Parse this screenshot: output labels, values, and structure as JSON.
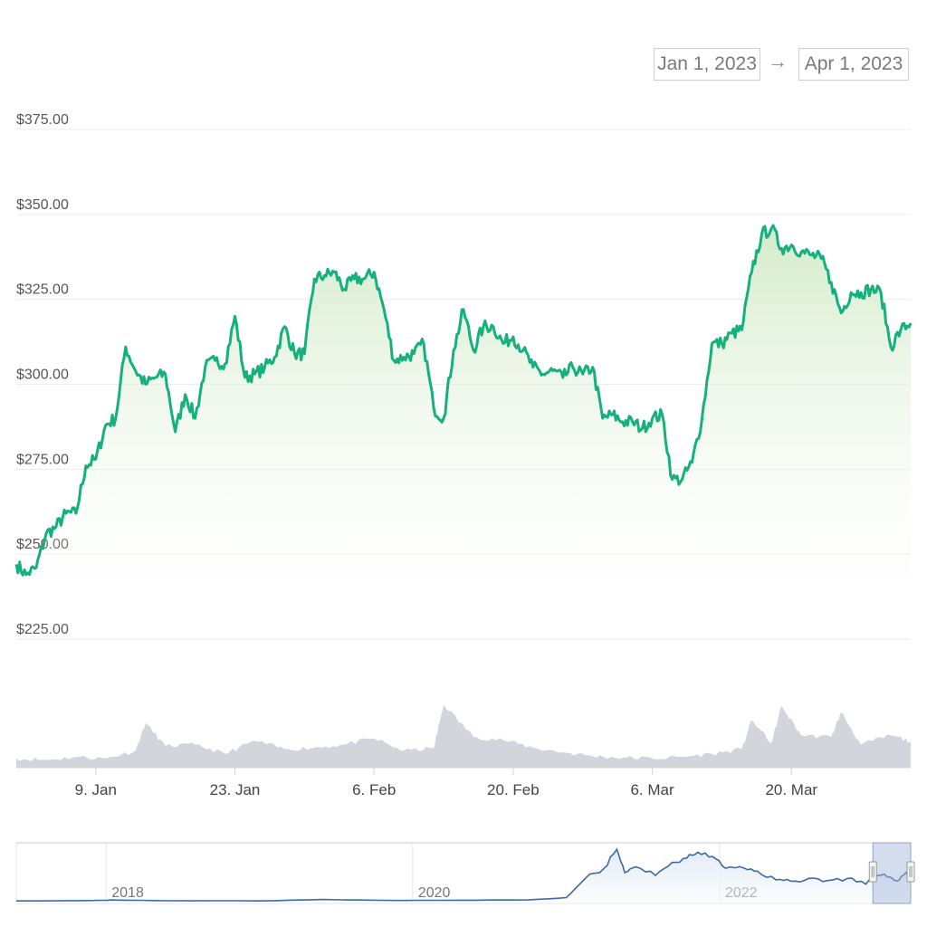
{
  "range_selector": {
    "from": "Jan 1, 2023",
    "arrow": "→",
    "to": "Apr 1, 2023"
  },
  "colors": {
    "price_line": "#16b07c",
    "area_top": "#cfe9c4",
    "volume": "#d3d5dc",
    "navigator_line": "#3d6aa3",
    "navigator_handle": "#9fb3d9",
    "gridline": "#ececec"
  },
  "chart_data": [
    {
      "type": "line",
      "title": "",
      "xlabel": "",
      "ylabel": "",
      "ylim": [
        225,
        375
      ],
      "y_ticks": [
        375,
        350,
        325,
        300,
        275,
        250,
        225
      ],
      "y_tick_labels": [
        "$375.00",
        "$350.00",
        "$325.00",
        "$300.00",
        "$275.00",
        "$250.00",
        "$225.00"
      ],
      "x_range": [
        "2023-01-01",
        "2023-04-01"
      ],
      "x_ticks": [
        "2023-01-09",
        "2023-01-23",
        "2023-02-06",
        "2023-02-20",
        "2023-03-06",
        "2023-03-20"
      ],
      "x_tick_labels": [
        "9. Jan",
        "23. Jan",
        "6. Feb",
        "20. Feb",
        "6. Mar",
        "20. Mar"
      ],
      "grid": true,
      "legend": "none",
      "series": [
        {
          "x": [
            "2023-01-01",
            "2023-01-02",
            "2023-01-03",
            "2023-01-04",
            "2023-01-05",
            "2023-01-06",
            "2023-01-07",
            "2023-01-08",
            "2023-01-09",
            "2023-01-10",
            "2023-01-11",
            "2023-01-12",
            "2023-01-13",
            "2023-01-14",
            "2023-01-15",
            "2023-01-16",
            "2023-01-17",
            "2023-01-18",
            "2023-01-19",
            "2023-01-20",
            "2023-01-21",
            "2023-01-22",
            "2023-01-23",
            "2023-01-24",
            "2023-01-25",
            "2023-01-26",
            "2023-01-27",
            "2023-01-28",
            "2023-01-29",
            "2023-01-30",
            "2023-01-31",
            "2023-02-01",
            "2023-02-02",
            "2023-02-03",
            "2023-02-04",
            "2023-02-05",
            "2023-02-06",
            "2023-02-07",
            "2023-02-08",
            "2023-02-09",
            "2023-02-10",
            "2023-02-11",
            "2023-02-12",
            "2023-02-13",
            "2023-02-14",
            "2023-02-15",
            "2023-02-16",
            "2023-02-17",
            "2023-02-18",
            "2023-02-19",
            "2023-02-20",
            "2023-02-21",
            "2023-02-22",
            "2023-02-23",
            "2023-02-24",
            "2023-02-25",
            "2023-02-26",
            "2023-02-27",
            "2023-02-28",
            "2023-03-01",
            "2023-03-02",
            "2023-03-03",
            "2023-03-04",
            "2023-03-05",
            "2023-03-06",
            "2023-03-07",
            "2023-03-08",
            "2023-03-09",
            "2023-03-10",
            "2023-03-11",
            "2023-03-12",
            "2023-03-13",
            "2023-03-14",
            "2023-03-15",
            "2023-03-16",
            "2023-03-17",
            "2023-03-18",
            "2023-03-19",
            "2023-03-20",
            "2023-03-21",
            "2023-03-22",
            "2023-03-23",
            "2023-03-24",
            "2023-03-25",
            "2023-03-26",
            "2023-03-27",
            "2023-03-28",
            "2023-03-29",
            "2023-03-30",
            "2023-03-31",
            "2023-04-01"
          ],
          "y": [
            247,
            244,
            246,
            256,
            258,
            262,
            262,
            276,
            278,
            288,
            290,
            311,
            304,
            300,
            302,
            303,
            286,
            297,
            290,
            305,
            307,
            306,
            320,
            302,
            303,
            305,
            308,
            317,
            309,
            309,
            331,
            332,
            333,
            328,
            331,
            331,
            333,
            322,
            307,
            308,
            309,
            312,
            293,
            290,
            310,
            322,
            310,
            317,
            317,
            312,
            314,
            310,
            305,
            303,
            304,
            302,
            305,
            303,
            305,
            290,
            291,
            289,
            289,
            287,
            290,
            291,
            272,
            272,
            277,
            290,
            312,
            312,
            315,
            316,
            333,
            344,
            346,
            340,
            341,
            339,
            338,
            337,
            330,
            321,
            327,
            327,
            328,
            327,
            311,
            316,
            318
          ]
        }
      ]
    },
    {
      "type": "area",
      "title": "",
      "xlabel": "",
      "ylabel": "",
      "x_range": [
        "2023-01-01",
        "2023-04-01"
      ],
      "series": [
        {
          "x": [
            "2023-01-01",
            "2023-01-04",
            "2023-01-07",
            "2023-01-10",
            "2023-01-13",
            "2023-01-14",
            "2023-01-16",
            "2023-01-19",
            "2023-01-22",
            "2023-01-25",
            "2023-01-28",
            "2023-01-31",
            "2023-02-03",
            "2023-02-06",
            "2023-02-09",
            "2023-02-12",
            "2023-02-13",
            "2023-02-16",
            "2023-02-19",
            "2023-02-22",
            "2023-02-25",
            "2023-02-28",
            "2023-03-03",
            "2023-03-06",
            "2023-03-09",
            "2023-03-12",
            "2023-03-15",
            "2023-03-16",
            "2023-03-18",
            "2023-03-19",
            "2023-03-21",
            "2023-03-24",
            "2023-03-25",
            "2023-03-27",
            "2023-03-30",
            "2023-04-01"
          ],
          "y": [
            0.12,
            0.1,
            0.14,
            0.12,
            0.22,
            0.58,
            0.28,
            0.3,
            0.18,
            0.35,
            0.24,
            0.26,
            0.3,
            0.38,
            0.22,
            0.25,
            0.82,
            0.4,
            0.36,
            0.26,
            0.2,
            0.15,
            0.13,
            0.12,
            0.14,
            0.18,
            0.24,
            0.62,
            0.32,
            0.8,
            0.42,
            0.4,
            0.72,
            0.3,
            0.42,
            0.34
          ]
        }
      ]
    },
    {
      "type": "line",
      "title": "",
      "xlabel": "",
      "ylabel": "",
      "x_range": [
        "2017-06-01",
        "2023-04-01"
      ],
      "x_tick_labels": [
        "2018",
        "2020",
        "2022"
      ],
      "x_ticks": [
        "2018-01-01",
        "2020-01-01",
        "2022-01-01"
      ],
      "selected_range": [
        "2023-01-01",
        "2023-04-01"
      ],
      "series": [
        {
          "x": [
            "2017-06-01",
            "2017-12-01",
            "2018-01-15",
            "2018-06-01",
            "2019-01-01",
            "2019-06-01",
            "2019-12-01",
            "2020-06-01",
            "2020-10-01",
            "2021-01-01",
            "2021-02-15",
            "2021-04-01",
            "2021-05-01",
            "2021-05-20",
            "2021-06-15",
            "2021-08-01",
            "2021-09-10",
            "2021-10-15",
            "2021-11-10",
            "2021-12-15",
            "2022-01-15",
            "2022-03-01",
            "2022-04-01",
            "2022-05-15",
            "2022-06-20",
            "2022-08-01",
            "2022-09-15",
            "2022-11-01",
            "2022-12-15",
            "2023-01-15",
            "2023-02-10",
            "2023-03-05",
            "2023-03-20",
            "2023-04-01"
          ],
          "y": [
            5,
            8,
            12,
            6,
            5,
            15,
            8,
            10,
            12,
            28,
            160,
            230,
            360,
            200,
            240,
            180,
            270,
            300,
            340,
            310,
            230,
            230,
            210,
            150,
            140,
            160,
            145,
            160,
            120,
            180,
            170,
            150,
            200,
            160
          ]
        }
      ]
    }
  ]
}
